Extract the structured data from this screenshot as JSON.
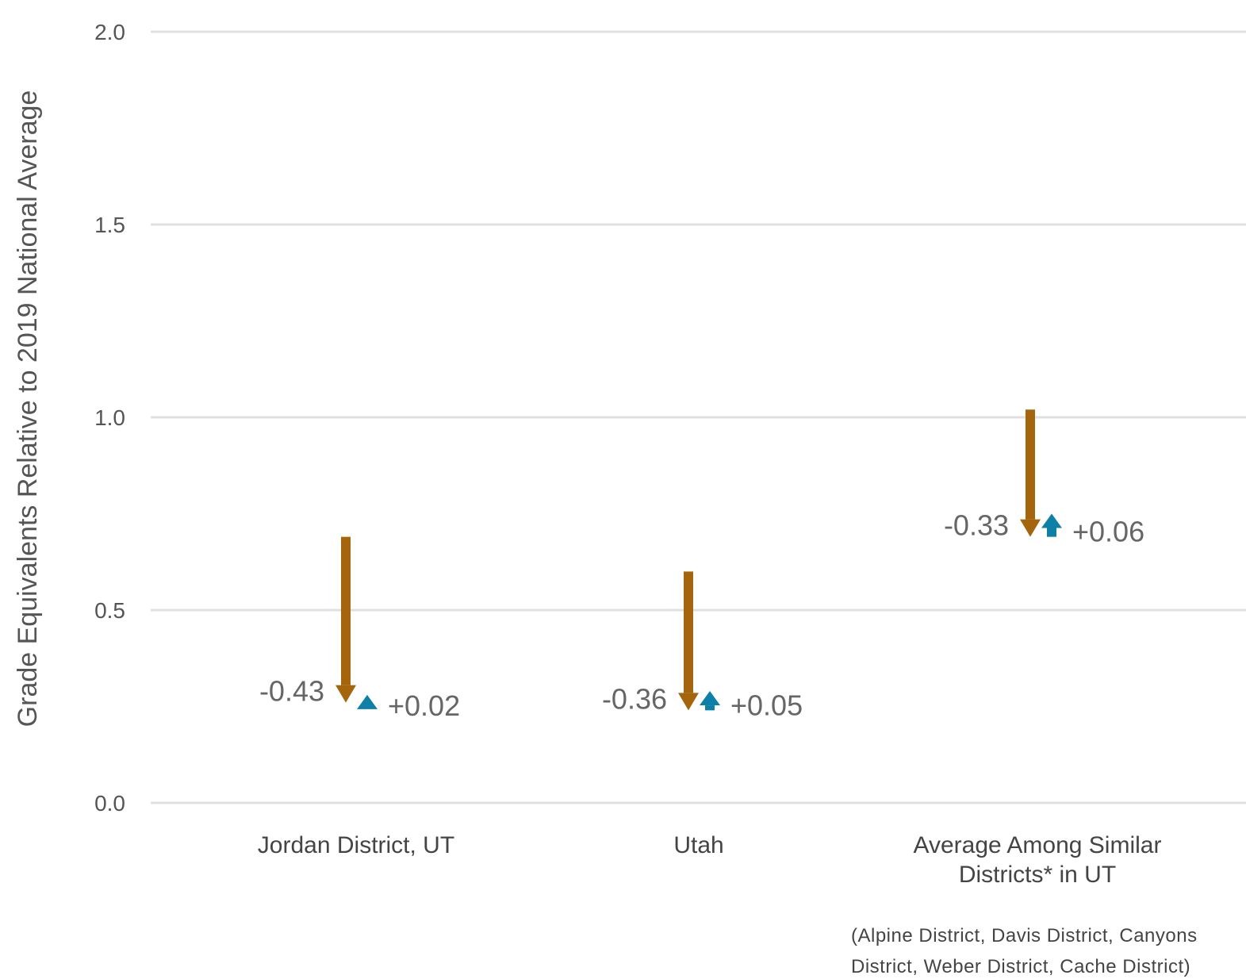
{
  "chart_data": {
    "type": "arrow",
    "ylabel": "Grade Equivalents Relative to 2019 National Average",
    "ylim": [
      0,
      2
    ],
    "yticks": [
      "0.0",
      "0.5",
      "1.0",
      "1.5",
      "2.0"
    ],
    "grid": true,
    "categories": [
      [
        "Jordan District, UT"
      ],
      [
        "Utah"
      ],
      [
        "Average Among Similar",
        "Districts* in UT"
      ]
    ],
    "series": [
      {
        "name": "",
        "color": "#A5650C",
        "start": [
          0.69,
          0.6,
          1.02
        ],
        "end": [
          0.26,
          0.24,
          0.69
        ],
        "labels": [
          "-0.43",
          "-0.36",
          "-0.33"
        ]
      },
      {
        "name": "",
        "color": "#0E7FA6",
        "start": [
          0.26,
          0.24,
          0.69
        ],
        "end": [
          0.28,
          0.29,
          0.75
        ],
        "labels": [
          "+0.02",
          "+0.05",
          "+0.06"
        ]
      }
    ],
    "footnote": [
      "(Alpine District, Davis District, Canyons",
      "District, Weber District, Cache District)"
    ]
  }
}
